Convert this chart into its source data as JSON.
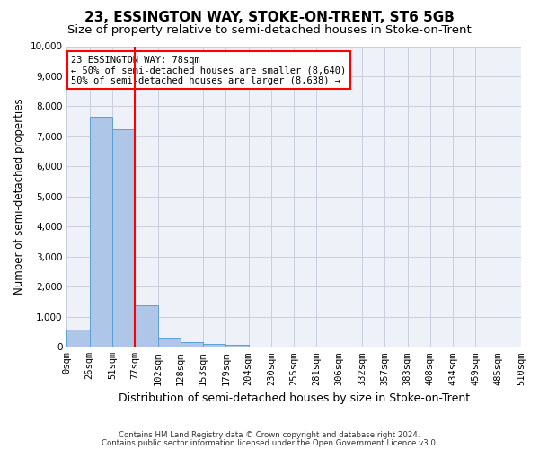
{
  "title": "23, ESSINGTON WAY, STOKE-ON-TRENT, ST6 5GB",
  "subtitle": "Size of property relative to semi-detached houses in Stoke-on-Trent",
  "xlabel": "Distribution of semi-detached houses by size in Stoke-on-Trent",
  "ylabel": "Number of semi-detached properties",
  "footer_line1": "Contains HM Land Registry data © Crown copyright and database right 2024.",
  "footer_line2": "Contains public sector information licensed under the Open Government Licence v3.0.",
  "bar_labels": [
    "0sqm",
    "26sqm",
    "51sqm",
    "77sqm",
    "102sqm",
    "128sqm",
    "153sqm",
    "179sqm",
    "204sqm",
    "230sqm",
    "255sqm",
    "281sqm",
    "306sqm",
    "332sqm",
    "357sqm",
    "383sqm",
    "408sqm",
    "434sqm",
    "459sqm",
    "485sqm",
    "510sqm"
  ],
  "bar_values": [
    570,
    7650,
    7250,
    1370,
    320,
    150,
    100,
    80,
    0,
    0,
    0,
    0,
    0,
    0,
    0,
    0,
    0,
    0,
    0,
    0
  ],
  "bar_color": "#aec6e8",
  "bar_edge_color": "#5a9fd4",
  "ylim": [
    0,
    10000
  ],
  "yticks": [
    0,
    1000,
    2000,
    3000,
    4000,
    5000,
    6000,
    7000,
    8000,
    9000,
    10000
  ],
  "annotation_text_line1": "23 ESSINGTON WAY: 78sqm",
  "annotation_text_line2": "← 50% of semi-detached houses are smaller (8,640)",
  "annotation_text_line3": "50% of semi-detached houses are larger (8,638) →",
  "background_color": "#eef2f8",
  "grid_color": "#c8d0e0",
  "title_fontsize": 11,
  "subtitle_fontsize": 9.5,
  "tick_fontsize": 7.5,
  "xlabel_fontsize": 9,
  "ylabel_fontsize": 8.5,
  "vline_pos": 3.0
}
